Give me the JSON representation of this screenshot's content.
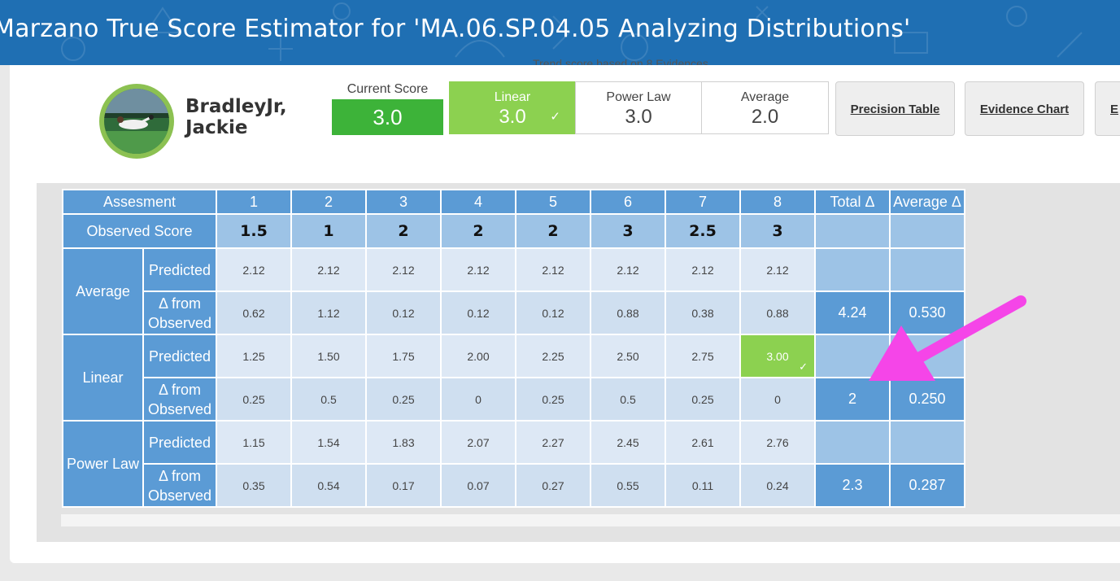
{
  "header": {
    "title": "Marzano True Score Estimator for 'MA.06.SP.04.05 Analyzing Distributions'",
    "trend_note": "Trend score based on 8 Evidences"
  },
  "student": {
    "name_line1": "BradleyJr,",
    "name_line2": "Jackie"
  },
  "current_score": {
    "label": "Current Score",
    "value": "3.0"
  },
  "score_options": [
    {
      "label": "Linear",
      "value": "3.0",
      "selected": true
    },
    {
      "label": "Power Law",
      "value": "3.0",
      "selected": false
    },
    {
      "label": "Average",
      "value": "2.0",
      "selected": false
    }
  ],
  "buttons": {
    "precision_table": "Precision Table",
    "evidence_chart": "Evidence Chart",
    "partial": "E"
  },
  "table": {
    "header_label": "Assesment",
    "columns": [
      "1",
      "2",
      "3",
      "4",
      "5",
      "6",
      "7",
      "8"
    ],
    "total_header": "Total Δ",
    "average_header": "Average Δ",
    "observed_label": "Observed Score",
    "observed": [
      "1.5",
      "1",
      "2",
      "2",
      "2",
      "3",
      "2.5",
      "3"
    ],
    "predicted_label": "Predicted",
    "delta_label_1": "Δ from",
    "delta_label_2": "Observed",
    "groups": {
      "average": {
        "label": "Average",
        "predicted": [
          "2.12",
          "2.12",
          "2.12",
          "2.12",
          "2.12",
          "2.12",
          "2.12",
          "2.12"
        ],
        "delta": [
          "0.62",
          "1.12",
          "0.12",
          "0.12",
          "0.12",
          "0.88",
          "0.38",
          "0.88"
        ],
        "total": "4.24",
        "average": "0.530"
      },
      "linear": {
        "label": "Linear",
        "predicted": [
          "1.25",
          "1.50",
          "1.75",
          "2.00",
          "2.25",
          "2.50",
          "2.75",
          "3.00"
        ],
        "delta": [
          "0.25",
          "0.5",
          "0.25",
          "0",
          "0.25",
          "0.5",
          "0.25",
          "0"
        ],
        "total": "2",
        "average": "0.250"
      },
      "power_law": {
        "label": "Power Law",
        "predicted": [
          "1.15",
          "1.54",
          "1.83",
          "2.07",
          "2.27",
          "2.45",
          "2.61",
          "2.76"
        ],
        "delta": [
          "0.35",
          "0.54",
          "0.17",
          "0.07",
          "0.27",
          "0.55",
          "0.11",
          "0.24"
        ],
        "total": "2.3",
        "average": "0.287"
      }
    }
  },
  "colors": {
    "header_bg": "#1f6fb3",
    "cell_header": "#5b9bd5",
    "cell_light": "#9dc3e6",
    "selected_green": "#8cd150",
    "current_green": "#3db339",
    "annotation_arrow": "#f545e8"
  }
}
